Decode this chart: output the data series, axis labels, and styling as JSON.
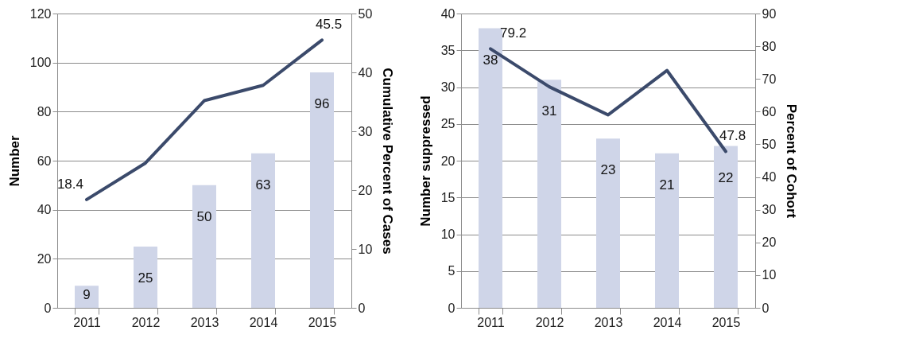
{
  "chart_data": [
    {
      "type": "bar",
      "categories": [
        "2011",
        "2012",
        "2013",
        "2014",
        "2015"
      ],
      "ylabel": "Number",
      "y2label": "Cumulative Percent of Cases",
      "ylim": [
        0,
        120
      ],
      "yticks": [
        0,
        20,
        40,
        60,
        80,
        100,
        120
      ],
      "y2lim": [
        0,
        50
      ],
      "y2ticks": [
        0,
        10,
        20,
        30,
        40,
        50
      ],
      "grid": "y",
      "series": [
        {
          "color": "#cfd5e8",
          "values": [
            9,
            25,
            50,
            63,
            96
          ],
          "value_labels": [
            "9",
            "25",
            "50",
            "63",
            "96"
          ]
        },
        {
          "type": "line",
          "axis": "y2",
          "color": "#3b4a6b",
          "values": [
            18.4,
            24.6,
            35.2,
            37.8,
            45.5
          ],
          "value_labels": [
            "18.4",
            null,
            null,
            null,
            "45.5"
          ]
        }
      ]
    },
    {
      "type": "bar",
      "categories": [
        "2011",
        "2012",
        "2013",
        "2014",
        "2015"
      ],
      "ylabel": "Number suppressed",
      "y2label": "Percent of Cohort",
      "ylim": [
        0,
        40
      ],
      "yticks": [
        0,
        5,
        10,
        15,
        20,
        25,
        30,
        35,
        40
      ],
      "y2lim": [
        0,
        90
      ],
      "y2ticks": [
        0,
        10,
        20,
        30,
        40,
        50,
        60,
        70,
        80,
        90
      ],
      "grid": "y",
      "series": [
        {
          "color": "#cfd5e8",
          "values": [
            38,
            31,
            23,
            21,
            22
          ],
          "value_labels": [
            "38",
            "31",
            "23",
            "21",
            "22"
          ]
        },
        {
          "type": "line",
          "axis": "y2",
          "color": "#3b4a6b",
          "values": [
            79.2,
            67.6,
            59.0,
            72.6,
            47.8
          ],
          "value_labels": [
            "79.2",
            null,
            null,
            null,
            "47.8"
          ]
        }
      ]
    }
  ]
}
